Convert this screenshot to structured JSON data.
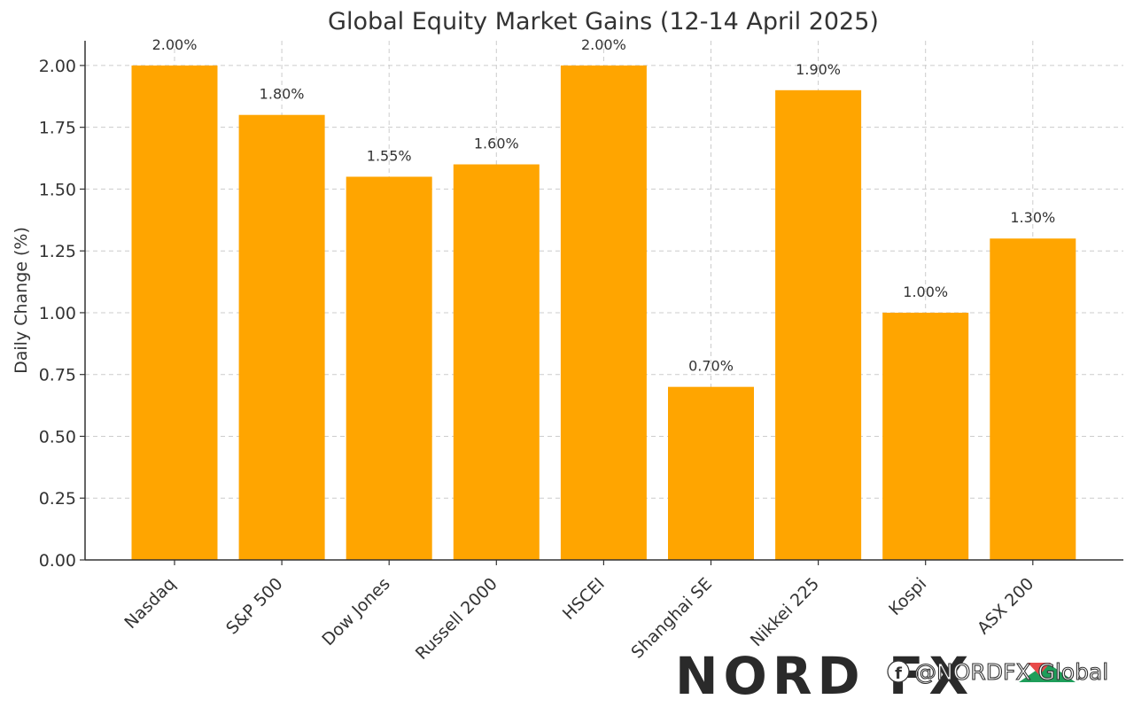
{
  "chart_data": {
    "type": "bar",
    "title": "Global Equity Market Gains (12-14 April 2025)",
    "xlabel": "",
    "ylabel": "Daily Change (%)",
    "categories": [
      "Nasdaq",
      "S&P 500",
      "Dow Jones",
      "Russell 2000",
      "HSCEI",
      "Shanghai SE",
      "Nikkei 225",
      "Kospi",
      "ASX 200"
    ],
    "values": [
      2.0,
      1.8,
      1.55,
      1.6,
      2.0,
      0.7,
      1.9,
      1.0,
      1.3
    ],
    "data_labels": [
      "2.00%",
      "1.80%",
      "1.55%",
      "1.60%",
      "2.00%",
      "0.70%",
      "1.90%",
      "1.00%",
      "1.30%"
    ],
    "yticks": [
      0.0,
      0.25,
      0.5,
      0.75,
      1.0,
      1.25,
      1.5,
      1.75,
      2.0
    ],
    "ytick_labels": [
      "0.00",
      "0.25",
      "0.50",
      "0.75",
      "1.00",
      "1.25",
      "1.50",
      "1.75",
      "2.00"
    ],
    "ylim": [
      0,
      2.1
    ],
    "grid": true,
    "bar_color": "#ffa500"
  },
  "watermark": {
    "brand": "NORD FX",
    "handle": "@NORDFX Global",
    "icon": "facebook-icon",
    "accent_red": "#e84a4a",
    "accent_green": "#1e9e5a"
  }
}
